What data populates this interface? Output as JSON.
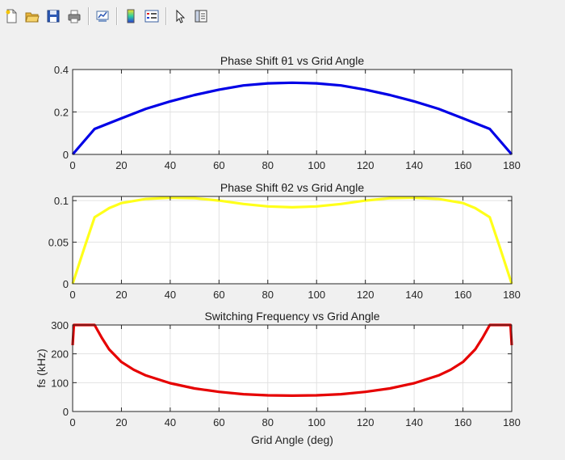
{
  "toolbar": {
    "buttons": [
      {
        "name": "new-figure-icon"
      },
      {
        "name": "open-file-icon"
      },
      {
        "name": "save-icon"
      },
      {
        "name": "print-icon"
      },
      {
        "sep": true
      },
      {
        "name": "link-plot-icon"
      },
      {
        "sep": true
      },
      {
        "name": "colorbar-icon"
      },
      {
        "name": "legend-icon"
      },
      {
        "sep": true
      },
      {
        "name": "pointer-icon"
      },
      {
        "name": "property-inspector-icon"
      }
    ]
  },
  "colors": {
    "axes_bg": "#ffffff",
    "grid": "#e2e2e2",
    "axis": "#262626",
    "series1": "#0000e6",
    "series2": "#ffff1a",
    "series3": "#e60000"
  },
  "chart_data": [
    {
      "type": "line",
      "title": "Phase Shift θ1 vs Grid Angle",
      "xlabel": "",
      "ylabel": "",
      "xlim": [
        0,
        180
      ],
      "ylim": [
        0,
        0.4
      ],
      "xticks": [
        0,
        20,
        40,
        60,
        80,
        100,
        120,
        140,
        160,
        180
      ],
      "yticks": [
        0,
        0.2,
        0.4
      ],
      "ytick_labels": [
        "0",
        "0.2",
        "0.4"
      ],
      "grid": true,
      "series": [
        {
          "color": "#0000e6",
          "x": [
            0,
            9,
            20,
            30,
            40,
            50,
            60,
            70,
            80,
            90,
            100,
            110,
            120,
            130,
            140,
            150,
            160,
            171,
            180
          ],
          "y": [
            0,
            0.12,
            0.17,
            0.215,
            0.25,
            0.28,
            0.305,
            0.325,
            0.335,
            0.338,
            0.335,
            0.325,
            0.305,
            0.28,
            0.25,
            0.215,
            0.17,
            0.12,
            0
          ]
        }
      ]
    },
    {
      "type": "line",
      "title": "Phase Shift θ2 vs Grid Angle",
      "xlabel": "",
      "ylabel": "",
      "xlim": [
        0,
        180
      ],
      "ylim": [
        0,
        0.105
      ],
      "xticks": [
        0,
        20,
        40,
        60,
        80,
        100,
        120,
        140,
        160,
        180
      ],
      "yticks": [
        0,
        0.05,
        0.1
      ],
      "ytick_labels": [
        "0",
        "0.05",
        "0.1"
      ],
      "grid": true,
      "series": [
        {
          "color": "#ffff1a",
          "x": [
            0,
            5,
            9,
            15,
            20,
            30,
            40,
            50,
            60,
            70,
            80,
            90,
            100,
            110,
            120,
            130,
            140,
            150,
            160,
            165,
            171,
            175,
            180
          ],
          "y": [
            0,
            0.045,
            0.08,
            0.091,
            0.097,
            0.102,
            0.1035,
            0.103,
            0.1,
            0.096,
            0.093,
            0.092,
            0.093,
            0.096,
            0.1,
            0.103,
            0.1035,
            0.102,
            0.097,
            0.091,
            0.08,
            0.045,
            0
          ]
        }
      ]
    },
    {
      "type": "line",
      "title": "Switching Frequency vs Grid Angle",
      "xlabel": "Grid Angle (deg)",
      "ylabel": "fs (kHz)",
      "xlim": [
        0,
        180
      ],
      "ylim": [
        0,
        300
      ],
      "xticks": [
        0,
        20,
        40,
        60,
        80,
        100,
        120,
        140,
        160,
        180
      ],
      "yticks": [
        0,
        100,
        200,
        300
      ],
      "ytick_labels": [
        "0",
        "100",
        "200",
        "300"
      ],
      "grid": true,
      "series": [
        {
          "color": "#e60000",
          "x": [
            0,
            0.5,
            9,
            12,
            15,
            20,
            25,
            30,
            40,
            50,
            60,
            70,
            80,
            90,
            100,
            110,
            120,
            130,
            140,
            150,
            155,
            160,
            165,
            168,
            171,
            179.5,
            180
          ],
          "y": [
            230,
            300,
            300,
            255,
            215,
            172,
            145,
            125,
            98,
            80,
            68,
            60,
            56,
            55,
            56,
            60,
            68,
            80,
            98,
            125,
            145,
            172,
            215,
            255,
            300,
            300,
            230
          ]
        }
      ]
    }
  ]
}
